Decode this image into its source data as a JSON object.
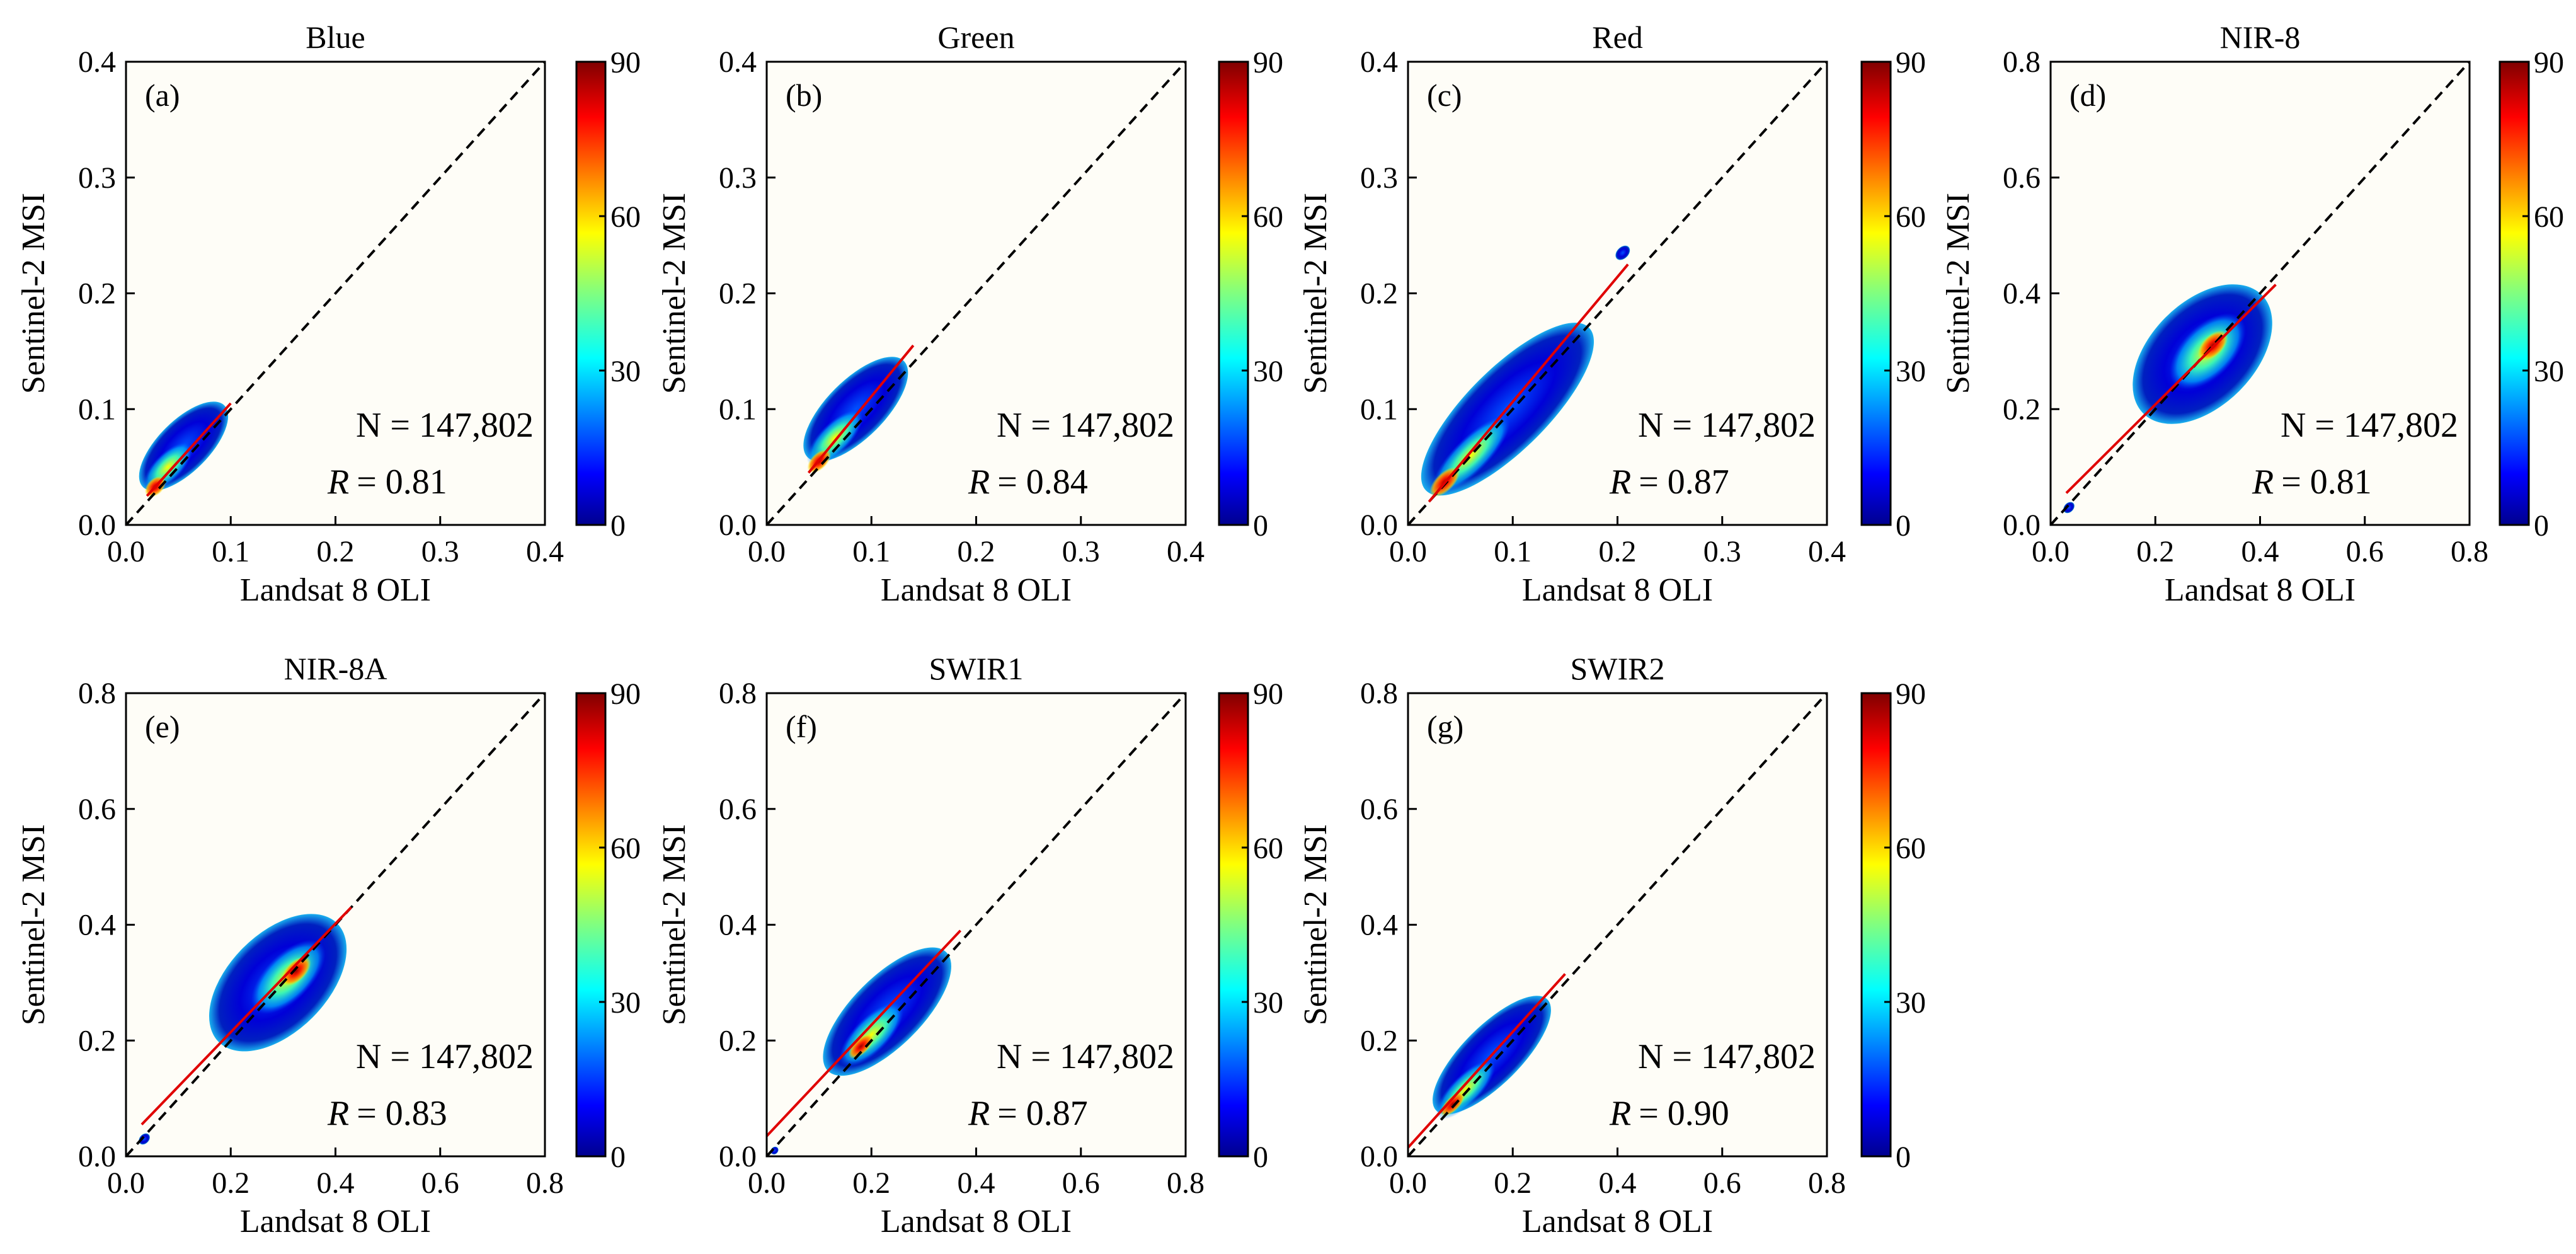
{
  "figure": {
    "description_label": "Sentinel-2 MSI vs Landsat 8 OLI density scatter plots"
  },
  "chart_data": [
    {
      "type": "scatter",
      "panel_label": "(a)",
      "title": "Blue",
      "xlabel": "Landsat 8 OLI",
      "ylabel": "Sentinel-2 MSI",
      "xlim": [
        0,
        0.4
      ],
      "ylim": [
        0,
        0.4
      ],
      "xticks": [
        0.0,
        0.1,
        0.2,
        0.3,
        0.4
      ],
      "yticks": [
        0.0,
        0.1,
        0.2,
        0.3,
        0.4
      ],
      "xtick_labels": [
        "0.0",
        "0.1",
        "0.2",
        "0.3",
        "0.4"
      ],
      "ytick_labels": [
        "0.0",
        "0.1",
        "0.2",
        "0.3",
        "0.4"
      ],
      "n_text": "N = 147,802",
      "r_label": "R",
      "r_value": "= 0.81",
      "fit": {
        "x": [
          0.02,
          0.1
        ],
        "y": [
          0.025,
          0.105
        ]
      },
      "cloud": [
        {
          "cx": 0.055,
          "cy": 0.068,
          "len": 0.055,
          "wid": 0.022,
          "density": 0.2
        },
        {
          "cx": 0.04,
          "cy": 0.05,
          "len": 0.03,
          "wid": 0.012,
          "density": 0.55
        },
        {
          "cx": 0.028,
          "cy": 0.033,
          "len": 0.012,
          "wid": 0.007,
          "density": 0.95
        }
      ],
      "colorbar": {
        "min": 0,
        "max": 90,
        "ticks": [
          0,
          30,
          60,
          90
        ],
        "tick_labels": [
          "0",
          "30",
          "60",
          "90"
        ]
      }
    },
    {
      "type": "scatter",
      "panel_label": "(b)",
      "title": "Green",
      "xlabel": "Landsat 8 OLI",
      "ylabel": "Sentinel-2 MSI",
      "xlim": [
        0,
        0.4
      ],
      "ylim": [
        0,
        0.4
      ],
      "xticks": [
        0.0,
        0.1,
        0.2,
        0.3,
        0.4
      ],
      "yticks": [
        0.0,
        0.1,
        0.2,
        0.3,
        0.4
      ],
      "xtick_labels": [
        "0.0",
        "0.1",
        "0.2",
        "0.3",
        "0.4"
      ],
      "ytick_labels": [
        "0.0",
        "0.1",
        "0.2",
        "0.3",
        "0.4"
      ],
      "n_text": "N = 147,802",
      "r_label": "R",
      "r_value": "= 0.84",
      "fit": {
        "x": [
          0.04,
          0.14
        ],
        "y": [
          0.045,
          0.155
        ]
      },
      "cloud": [
        {
          "cx": 0.085,
          "cy": 0.1,
          "len": 0.065,
          "wid": 0.025,
          "density": 0.2
        },
        {
          "cx": 0.065,
          "cy": 0.075,
          "len": 0.035,
          "wid": 0.013,
          "density": 0.55
        },
        {
          "cx": 0.05,
          "cy": 0.055,
          "len": 0.014,
          "wid": 0.007,
          "density": 0.95
        }
      ],
      "colorbar": {
        "min": 0,
        "max": 90,
        "ticks": [
          0,
          30,
          60,
          90
        ],
        "tick_labels": [
          "0",
          "30",
          "60",
          "90"
        ]
      }
    },
    {
      "type": "scatter",
      "panel_label": "(c)",
      "title": "Red",
      "xlabel": "Landsat 8 OLI",
      "ylabel": "Sentinel-2 MSI",
      "xlim": [
        0,
        0.4
      ],
      "ylim": [
        0,
        0.4
      ],
      "xticks": [
        0.0,
        0.1,
        0.2,
        0.3,
        0.4
      ],
      "yticks": [
        0.0,
        0.1,
        0.2,
        0.3,
        0.4
      ],
      "xtick_labels": [
        "0.0",
        "0.1",
        "0.2",
        "0.3",
        "0.4"
      ],
      "ytick_labels": [
        "0.0",
        "0.1",
        "0.2",
        "0.3",
        "0.4"
      ],
      "n_text": "N = 147,802",
      "r_label": "R",
      "r_value": "= 0.87",
      "fit": {
        "x": [
          0.02,
          0.21
        ],
        "y": [
          0.02,
          0.225
        ]
      },
      "cloud": [
        {
          "cx": 0.095,
          "cy": 0.1,
          "len": 0.11,
          "wid": 0.035,
          "density": 0.2
        },
        {
          "cx": 0.06,
          "cy": 0.06,
          "len": 0.05,
          "wid": 0.015,
          "density": 0.55
        },
        {
          "cx": 0.035,
          "cy": 0.037,
          "len": 0.018,
          "wid": 0.008,
          "density": 0.95
        },
        {
          "cx": 0.205,
          "cy": 0.235,
          "len": 0.008,
          "wid": 0.005,
          "density": 0.2
        }
      ],
      "colorbar": {
        "min": 0,
        "max": 90,
        "ticks": [
          0,
          30,
          60,
          90
        ],
        "tick_labels": [
          "0",
          "30",
          "60",
          "90"
        ]
      }
    },
    {
      "type": "scatter",
      "panel_label": "(d)",
      "title": "NIR-8",
      "xlabel": "Landsat 8 OLI",
      "ylabel": "Sentinel-2 MSI",
      "xlim": [
        0,
        0.8
      ],
      "ylim": [
        0,
        0.8
      ],
      "xticks": [
        0.0,
        0.2,
        0.4,
        0.6,
        0.8
      ],
      "yticks": [
        0.0,
        0.2,
        0.4,
        0.6,
        0.8
      ],
      "xtick_labels": [
        "0.0",
        "0.2",
        "0.4",
        "0.6",
        "0.8"
      ],
      "ytick_labels": [
        "0.0",
        "0.2",
        "0.4",
        "0.6",
        "0.8"
      ],
      "n_text": "N = 147,802",
      "r_label": "R",
      "r_value": "= 0.81",
      "fit": {
        "x": [
          0.03,
          0.43
        ],
        "y": [
          0.055,
          0.415
        ]
      },
      "cloud": [
        {
          "cx": 0.29,
          "cy": 0.295,
          "len": 0.16,
          "wid": 0.09,
          "density": 0.2
        },
        {
          "cx": 0.3,
          "cy": 0.3,
          "len": 0.09,
          "wid": 0.045,
          "density": 0.55
        },
        {
          "cx": 0.31,
          "cy": 0.31,
          "len": 0.035,
          "wid": 0.018,
          "density": 0.95
        },
        {
          "cx": 0.035,
          "cy": 0.03,
          "len": 0.012,
          "wid": 0.008,
          "density": 0.25
        }
      ],
      "colorbar": {
        "min": 0,
        "max": 90,
        "ticks": [
          0,
          30,
          60,
          90
        ],
        "tick_labels": [
          "0",
          "30",
          "60",
          "90"
        ]
      }
    },
    {
      "type": "scatter",
      "panel_label": "(e)",
      "title": "NIR-8A",
      "xlabel": "Landsat 8 OLI",
      "ylabel": "Sentinel-2 MSI",
      "xlim": [
        0,
        0.8
      ],
      "ylim": [
        0,
        0.8
      ],
      "xticks": [
        0.0,
        0.2,
        0.4,
        0.6,
        0.8
      ],
      "yticks": [
        0.0,
        0.2,
        0.4,
        0.6,
        0.8
      ],
      "xtick_labels": [
        "0.0",
        "0.2",
        "0.4",
        "0.6",
        "0.8"
      ],
      "ytick_labels": [
        "0.0",
        "0.2",
        "0.4",
        "0.6",
        "0.8"
      ],
      "n_text": "N = 147,802",
      "r_label": "R",
      "r_value": "= 0.83",
      "fit": {
        "x": [
          0.03,
          0.43
        ],
        "y": [
          0.055,
          0.43
        ]
      },
      "cloud": [
        {
          "cx": 0.29,
          "cy": 0.3,
          "len": 0.16,
          "wid": 0.085,
          "density": 0.2
        },
        {
          "cx": 0.31,
          "cy": 0.31,
          "len": 0.09,
          "wid": 0.04,
          "density": 0.55
        },
        {
          "cx": 0.325,
          "cy": 0.32,
          "len": 0.035,
          "wid": 0.017,
          "density": 0.95
        },
        {
          "cx": 0.035,
          "cy": 0.03,
          "len": 0.012,
          "wid": 0.008,
          "density": 0.25
        }
      ],
      "colorbar": {
        "min": 0,
        "max": 90,
        "ticks": [
          0,
          30,
          60,
          90
        ],
        "tick_labels": [
          "0",
          "30",
          "60",
          "90"
        ]
      }
    },
    {
      "type": "scatter",
      "panel_label": "(f)",
      "title": "SWIR1",
      "xlabel": "Landsat 8 OLI",
      "ylabel": "Sentinel-2 MSI",
      "xlim": [
        0,
        0.8
      ],
      "ylim": [
        0,
        0.8
      ],
      "xticks": [
        0.0,
        0.2,
        0.4,
        0.6,
        0.8
      ],
      "yticks": [
        0.0,
        0.2,
        0.4,
        0.6,
        0.8
      ],
      "xtick_labels": [
        "0.0",
        "0.2",
        "0.4",
        "0.6",
        "0.8"
      ],
      "ytick_labels": [
        "0.0",
        "0.2",
        "0.4",
        "0.6",
        "0.8"
      ],
      "n_text": "N = 147,802",
      "r_label": "R",
      "r_value": "= 0.87",
      "fit": {
        "x": [
          0.0,
          0.37
        ],
        "y": [
          0.035,
          0.39
        ]
      },
      "cloud": [
        {
          "cx": 0.23,
          "cy": 0.25,
          "len": 0.16,
          "wid": 0.06,
          "density": 0.2
        },
        {
          "cx": 0.2,
          "cy": 0.21,
          "len": 0.08,
          "wid": 0.03,
          "density": 0.55
        },
        {
          "cx": 0.18,
          "cy": 0.19,
          "len": 0.03,
          "wid": 0.013,
          "density": 0.95
        },
        {
          "cx": 0.015,
          "cy": 0.01,
          "len": 0.008,
          "wid": 0.006,
          "density": 0.25
        }
      ],
      "colorbar": {
        "min": 0,
        "max": 90,
        "ticks": [
          0,
          30,
          60,
          90
        ],
        "tick_labels": [
          "0",
          "30",
          "60",
          "90"
        ]
      }
    },
    {
      "type": "scatter",
      "panel_label": "(g)",
      "title": "SWIR2",
      "xlabel": "Landsat 8 OLI",
      "ylabel": "Sentinel-2 MSI",
      "xlim": [
        0,
        0.8
      ],
      "ylim": [
        0,
        0.8
      ],
      "xticks": [
        0.0,
        0.2,
        0.4,
        0.6,
        0.8
      ],
      "yticks": [
        0.0,
        0.2,
        0.4,
        0.6,
        0.8
      ],
      "xtick_labels": [
        "0.0",
        "0.2",
        "0.4",
        "0.6",
        "0.8"
      ],
      "ytick_labels": [
        "0.0",
        "0.2",
        "0.4",
        "0.6",
        "0.8"
      ],
      "n_text": "N = 147,802",
      "r_label": "R",
      "r_value": "= 0.90",
      "fit": {
        "x": [
          0.0,
          0.3
        ],
        "y": [
          0.015,
          0.315
        ]
      },
      "cloud": [
        {
          "cx": 0.16,
          "cy": 0.175,
          "len": 0.15,
          "wid": 0.05,
          "density": 0.2
        },
        {
          "cx": 0.11,
          "cy": 0.115,
          "len": 0.075,
          "wid": 0.025,
          "density": 0.55
        },
        {
          "cx": 0.085,
          "cy": 0.09,
          "len": 0.03,
          "wid": 0.012,
          "density": 0.95
        }
      ],
      "colorbar": {
        "min": 0,
        "max": 90,
        "ticks": [
          0,
          30,
          60,
          90
        ],
        "tick_labels": [
          "0",
          "30",
          "60",
          "90"
        ]
      }
    }
  ]
}
